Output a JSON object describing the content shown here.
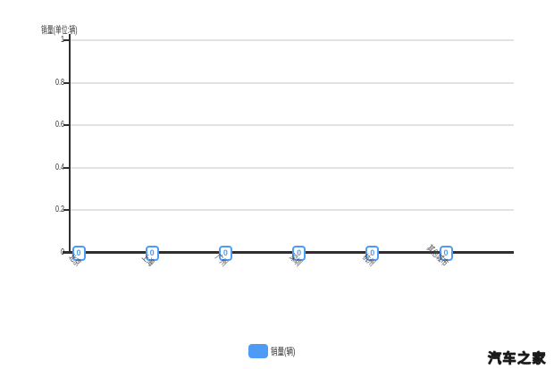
{
  "chart_data": {
    "type": "bar",
    "categories": [
      "北京",
      "上海",
      "广州",
      "深圳",
      "杭州",
      "其他城市"
    ],
    "series": [
      {
        "name": "销量(辆)",
        "values": [
          0,
          0,
          0,
          0,
          0,
          0
        ]
      }
    ],
    "value_labels": [
      "0",
      "0",
      "0",
      "0",
      "0",
      "0"
    ],
    "title": "",
    "xlabel": "",
    "ylabel": "销量(单位:辆)",
    "ylim": [
      0,
      1
    ],
    "yticks": [
      {
        "value": 0,
        "label": "0"
      },
      {
        "value": 0.2,
        "label": "0.2"
      },
      {
        "value": 0.4,
        "label": "0.4"
      },
      {
        "value": 0.6,
        "label": "0.6"
      },
      {
        "value": 0.8,
        "label": "0.8"
      },
      {
        "value": 1,
        "label": "1"
      }
    ],
    "grid": true,
    "legend_position": "bottom-center",
    "colors": {
      "accent": "#4e9bf5",
      "grid": "#e2e2e2",
      "axis": "#2f2f2f",
      "text": "#333333"
    }
  },
  "legend": {
    "label": "销量(辆)"
  },
  "watermark": {
    "text": "汽车之家"
  }
}
